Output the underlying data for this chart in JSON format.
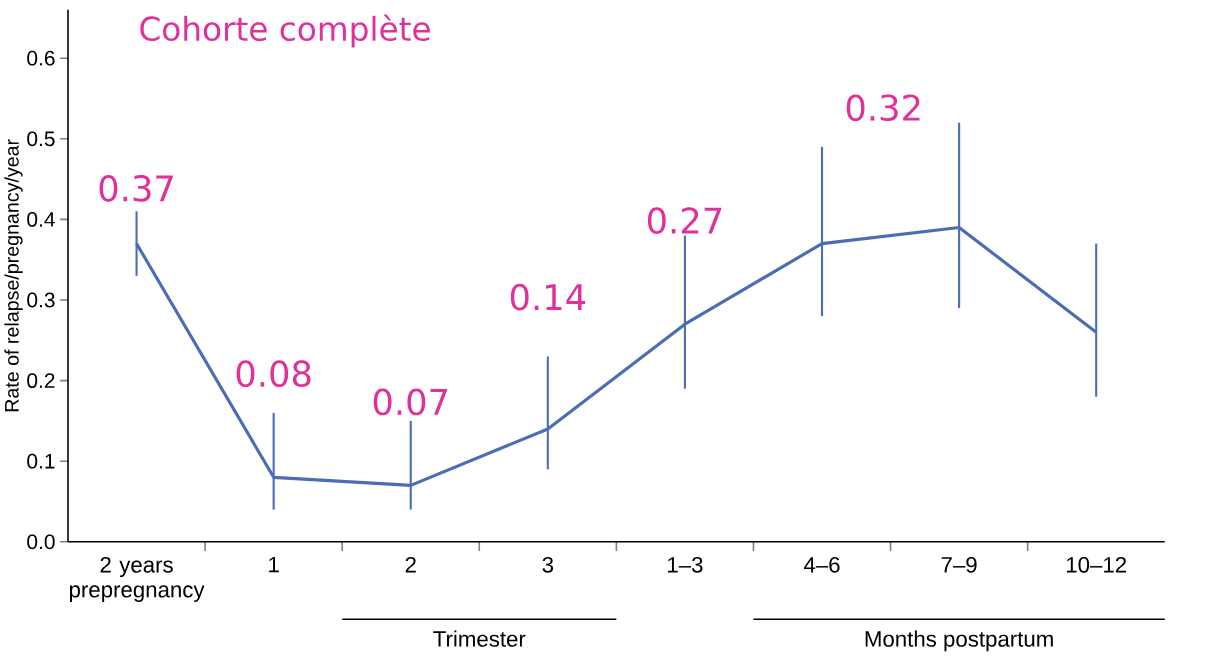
{
  "chart_data": {
    "type": "line",
    "title": "Cohorte complète",
    "ylabel": "Rate of relapse/pregnancy/year",
    "categories": [
      "2 years prepregnancy",
      "1",
      "2",
      "3",
      "1–3",
      "4–6",
      "7–9",
      "10–12"
    ],
    "series": [
      {
        "color": "#4a6db5",
        "values": [
          0.37,
          0.08,
          0.07,
          0.14,
          0.27,
          0.37,
          0.39,
          0.26
        ],
        "errors": [
          [
            0.33,
            0.41
          ],
          [
            0.04,
            0.16
          ],
          [
            0.04,
            0.15
          ],
          [
            0.09,
            0.23
          ],
          [
            0.19,
            0.38
          ],
          [
            0.28,
            0.49
          ],
          [
            0.29,
            0.52
          ],
          [
            0.18,
            0.37
          ]
        ]
      }
    ],
    "ylim": [
      0,
      0.66
    ],
    "yticks": [
      {
        "value": 0,
        "label": "0.0"
      },
      0.1,
      0.2,
      0.3,
      0.4,
      0.5,
      0.6
    ],
    "annotations": [
      "Trimester",
      "Months postpartum",
      "0.37",
      "0.08",
      "0.07",
      "0.14",
      "0.27",
      "0.32"
    ],
    "grid": false,
    "marker": "none",
    "line_style": "solid"
  }
}
